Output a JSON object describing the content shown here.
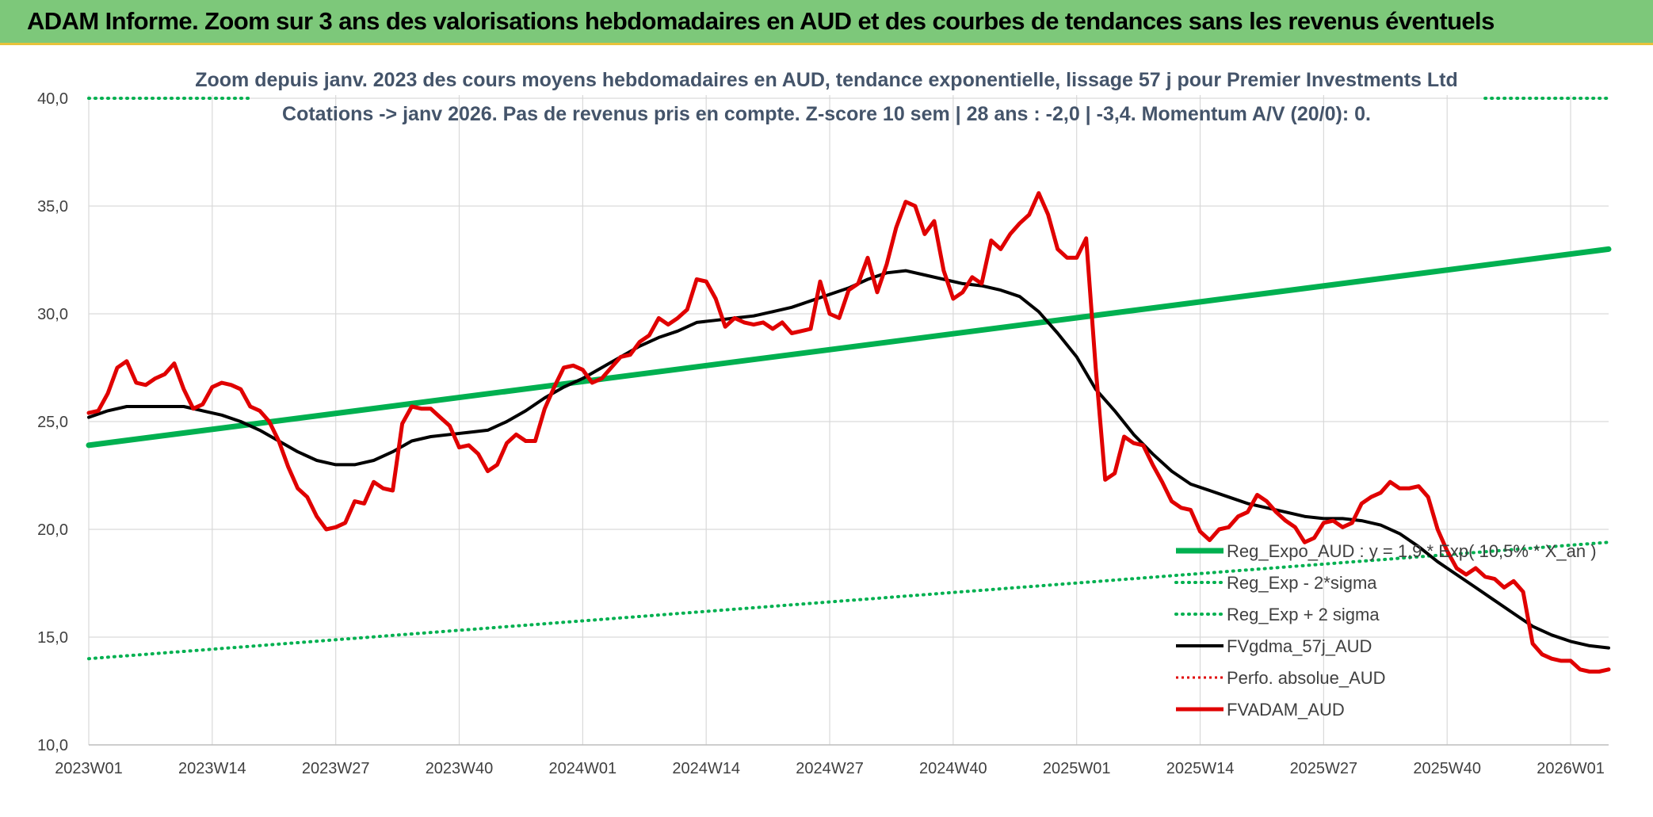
{
  "banner": {
    "title": "ADAM Informe. Zoom sur 3 ans des valorisations hebdomadaires en AUD et des courbes de tendances sans les revenus éventuels"
  },
  "colors": {
    "banner_bg": "#7dc87a",
    "regression": "#00b050",
    "fvgdma": "#000000",
    "fvadam": "#e00000",
    "perfo": "#e00000",
    "grid": "#d9d9d9",
    "axis_text": "#404040",
    "subtitle_text": "#44546a"
  },
  "chart_data": {
    "type": "line",
    "title": "Zoom depuis janv. 2023 des cours moyens hebdomadaires en AUD, tendance exponentielle, lissage 57 j pour Premier Investments Ltd",
    "subtitle": "Cotations -> janv 2026. Pas de revenus pris en compte. Z-score 10 sem | 28 ans : -2,0 | -3,4. Momentum A/V (20/0): 0.",
    "xlabel": "",
    "ylabel": "",
    "ylim": [
      10,
      40
    ],
    "yticks": [
      "10,0",
      "15,0",
      "20,0",
      "25,0",
      "30,0",
      "35,0",
      "40,0"
    ],
    "ytick_values": [
      10,
      15,
      20,
      25,
      30,
      35,
      40
    ],
    "xlim": [
      0,
      160
    ],
    "xticks": [
      "2023W01",
      "2023W14",
      "2023W27",
      "2023W40",
      "2024W01",
      "2024W14",
      "2024W27",
      "2024W40",
      "2025W01",
      "2025W14",
      "2025W27",
      "2025W40",
      "2026W01"
    ],
    "xtick_values": [
      0,
      13,
      26,
      39,
      52,
      65,
      78,
      91,
      104,
      117,
      130,
      143,
      156
    ],
    "grid": true,
    "legend_position": "bottom-right",
    "series": [
      {
        "name": "Reg_Expo_AUD : y = 1,9 * Exp( 10,5% * X_an )",
        "style": "solid-thick",
        "x": [
          0,
          160
        ],
        "values": [
          23.9,
          33.0
        ]
      },
      {
        "name": "Reg_Exp - 2*sigma",
        "style": "dotted",
        "x": [
          0,
          160
        ],
        "values": [
          14.0,
          19.4
        ]
      },
      {
        "name": "Reg_Exp + 2 sigma",
        "style": "dotted",
        "x": [
          0,
          160
        ],
        "values": [
          40.0,
          40.0
        ]
      },
      {
        "name": "FVgdma_57j_AUD",
        "style": "solid",
        "x": [
          0,
          2,
          4,
          6,
          8,
          10,
          12,
          14,
          16,
          18,
          20,
          22,
          24,
          26,
          28,
          30,
          32,
          34,
          36,
          38,
          40,
          42,
          44,
          46,
          48,
          50,
          52,
          54,
          56,
          58,
          60,
          62,
          64,
          66,
          68,
          70,
          72,
          74,
          76,
          78,
          80,
          82,
          84,
          86,
          88,
          90,
          92,
          94,
          96,
          98,
          100,
          102,
          104,
          106,
          108,
          110,
          112,
          114,
          116,
          118,
          120,
          122,
          124,
          126,
          128,
          130,
          132,
          134,
          136,
          138,
          140,
          142,
          144,
          146,
          148,
          150,
          152,
          154,
          156,
          158,
          160
        ],
        "values": [
          25.2,
          25.5,
          25.7,
          25.7,
          25.7,
          25.7,
          25.5,
          25.3,
          25.0,
          24.6,
          24.1,
          23.6,
          23.2,
          23.0,
          23.0,
          23.2,
          23.6,
          24.1,
          24.3,
          24.4,
          24.5,
          24.6,
          25.0,
          25.5,
          26.1,
          26.6,
          27.0,
          27.5,
          28.0,
          28.5,
          28.9,
          29.2,
          29.6,
          29.7,
          29.8,
          29.9,
          30.1,
          30.3,
          30.6,
          30.9,
          31.2,
          31.6,
          31.9,
          32.0,
          31.8,
          31.6,
          31.4,
          31.3,
          31.1,
          30.8,
          30.1,
          29.1,
          28.0,
          26.5,
          25.5,
          24.4,
          23.5,
          22.7,
          22.1,
          21.8,
          21.5,
          21.2,
          21.0,
          20.8,
          20.6,
          20.5,
          20.5,
          20.4,
          20.2,
          19.8,
          19.2,
          18.5,
          17.9,
          17.3,
          16.7,
          16.1,
          15.5,
          15.1,
          14.8,
          14.6,
          14.5
        ]
      },
      {
        "name": "Perfo. absolue_AUD",
        "style": "dotted",
        "x": [],
        "values": []
      },
      {
        "name": "FVADAM_AUD",
        "style": "solid-thick",
        "x": [
          0,
          1,
          2,
          3,
          4,
          5,
          6,
          7,
          8,
          9,
          10,
          11,
          12,
          13,
          14,
          15,
          16,
          17,
          18,
          19,
          20,
          21,
          22,
          23,
          24,
          25,
          26,
          27,
          28,
          29,
          30,
          31,
          32,
          33,
          34,
          35,
          36,
          37,
          38,
          39,
          40,
          41,
          42,
          43,
          44,
          45,
          46,
          47,
          48,
          49,
          50,
          51,
          52,
          53,
          54,
          55,
          56,
          57,
          58,
          59,
          60,
          61,
          62,
          63,
          64,
          65,
          66,
          67,
          68,
          69,
          70,
          71,
          72,
          73,
          74,
          75,
          76,
          77,
          78,
          79,
          80,
          81,
          82,
          83,
          84,
          85,
          86,
          87,
          88,
          89,
          90,
          91,
          92,
          93,
          94,
          95,
          96,
          97,
          98,
          99,
          100,
          101,
          102,
          103,
          104,
          105,
          106,
          107,
          108,
          109,
          110,
          111,
          112,
          113,
          114,
          115,
          116,
          117,
          118,
          119,
          120,
          121,
          122,
          123,
          124,
          125,
          126,
          127,
          128,
          129,
          130,
          131,
          132,
          133,
          134,
          135,
          136,
          137,
          138,
          139,
          140,
          141,
          142,
          143,
          144,
          145,
          146,
          147,
          148,
          149,
          150,
          151,
          152,
          153,
          154,
          155,
          156,
          157,
          158,
          159,
          160
        ],
        "values": [
          25.4,
          25.5,
          26.3,
          27.5,
          27.8,
          26.8,
          26.7,
          27.0,
          27.2,
          27.7,
          26.5,
          25.6,
          25.8,
          26.6,
          26.8,
          26.7,
          26.5,
          25.7,
          25.5,
          25.0,
          24.1,
          22.9,
          21.9,
          21.5,
          20.6,
          20.0,
          20.1,
          20.3,
          21.3,
          21.2,
          22.2,
          21.9,
          21.8,
          24.9,
          25.7,
          25.6,
          25.6,
          25.2,
          24.8,
          23.8,
          23.9,
          23.5,
          22.7,
          23.0,
          24.0,
          24.4,
          24.1,
          24.1,
          25.6,
          26.6,
          27.5,
          27.6,
          27.4,
          26.8,
          27.0,
          27.5,
          28.0,
          28.1,
          28.7,
          29.0,
          29.8,
          29.5,
          29.8,
          30.2,
          31.6,
          31.5,
          30.7,
          29.4,
          29.8,
          29.6,
          29.5,
          29.6,
          29.3,
          29.6,
          29.1,
          29.2,
          29.3,
          31.5,
          30.0,
          29.8,
          31.1,
          31.4,
          32.6,
          31.0,
          32.3,
          34.0,
          35.2,
          35.0,
          33.7,
          34.3,
          32.0,
          30.7,
          31.0,
          31.7,
          31.4,
          33.4,
          33.0,
          33.7,
          34.2,
          34.6,
          35.6,
          34.6,
          33.0,
          32.6,
          32.6,
          33.5,
          27.5,
          22.3,
          22.6,
          24.3,
          24.0,
          23.9,
          23.0,
          22.2,
          21.3,
          21.0,
          20.9,
          19.9,
          19.5,
          20.0,
          20.1,
          20.6,
          20.8,
          21.6,
          21.3,
          20.8,
          20.4,
          20.1,
          19.4,
          19.6,
          20.3,
          20.4,
          20.1,
          20.3,
          21.2,
          21.5,
          21.7,
          22.2,
          21.9,
          21.9,
          22.0,
          21.5,
          20.0,
          19.0,
          18.2,
          17.9,
          18.2,
          17.8,
          17.7,
          17.3,
          17.6,
          17.1,
          14.7,
          14.2,
          14.0,
          13.9,
          13.9,
          13.5,
          13.4,
          13.4,
          13.5
        ]
      }
    ]
  }
}
